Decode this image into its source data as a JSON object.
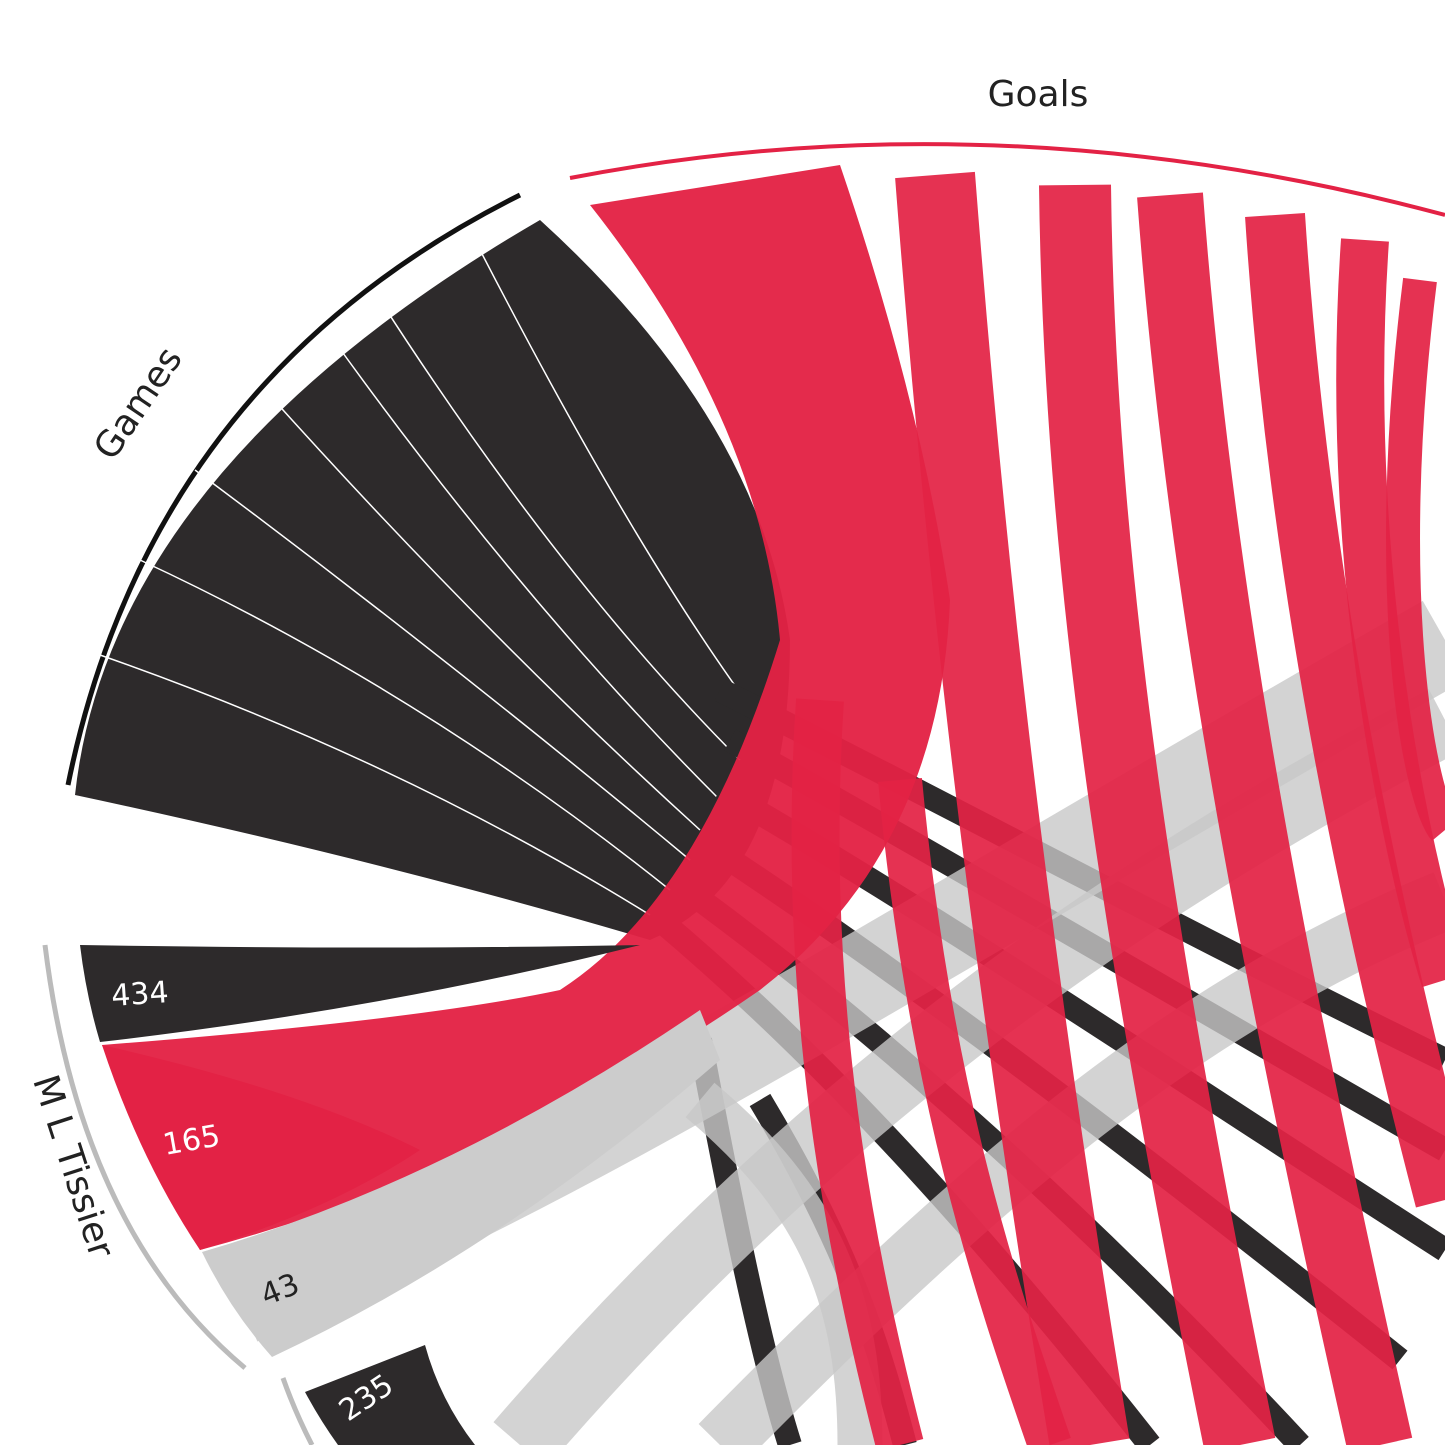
{
  "chart_data": {
    "type": "chord",
    "groups": [
      "Games",
      "Goals"
    ],
    "player": "M L Tissier",
    "values": [
      434,
      165,
      43,
      235
    ],
    "colors": [
      "#2d2a2b",
      "#e32245",
      "#cccccc",
      "#2d2a2b"
    ],
    "label_colors": [
      "#ffffff",
      "#ffffff",
      "#222222",
      "#ffffff"
    ]
  }
}
